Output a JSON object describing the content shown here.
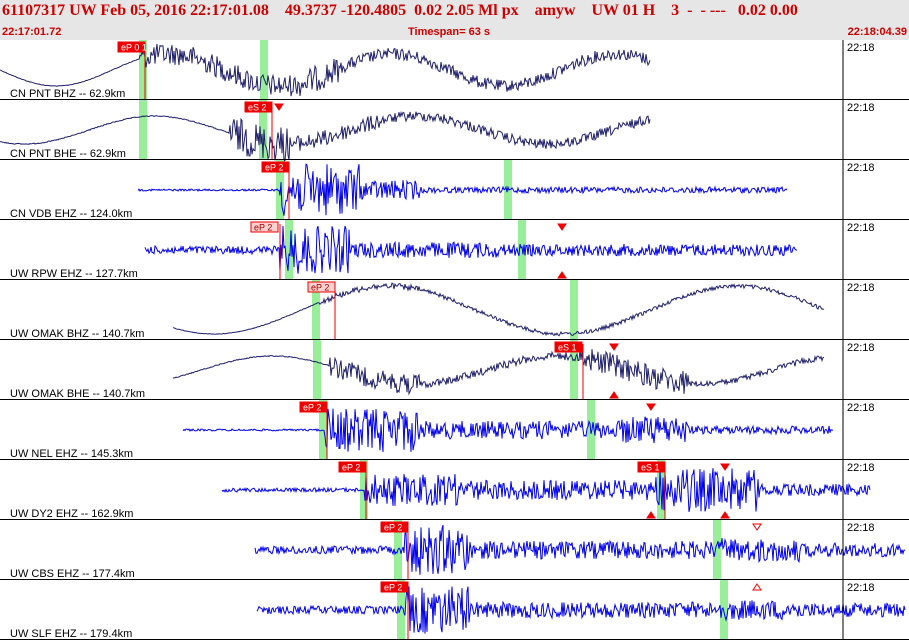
{
  "header": {
    "title": "61107317 UW Feb 05, 2016 22:17:01.08    49.3737 -120.4805  0.02 2.05 Ml px    amyw    UW 01 H    3  -  - ---   0.02 0.00",
    "start_time": "22:17:01.72",
    "timespan": "Timespan=  63 s",
    "end_time": "22:18:04.39"
  },
  "colors": {
    "background": "#ffffff",
    "header_bg": "#e6e6e6",
    "header_text": "#cc0000",
    "trace_blue": "#0000ee",
    "trace_navy": "#1f1f6b",
    "pick_box": "#ee0000",
    "pick_box_light": "#ffd0d0",
    "window_green": "#99ee99"
  },
  "traces": [
    {
      "label": "CN PNT BHZ -- 62.9km",
      "minute": "22:18",
      "color": "navy",
      "start": 0,
      "end": 650,
      "base_freq": 0.028,
      "base_amp": 16,
      "noise": [
        [
          0,
          140,
          0.3
        ],
        [
          140,
          300,
          11
        ],
        [
          300,
          340,
          13
        ],
        [
          340,
          650,
          6
        ]
      ],
      "greens": [
        143,
        264
      ],
      "picks": [
        {
          "x": 118,
          "label": "eP 0 1",
          "style": "solid",
          "line_to": 145
        }
      ]
    },
    {
      "label": "CN PNT BHE -- 62.9km",
      "minute": "22:18",
      "color": "navy",
      "start": 0,
      "end": 650,
      "base_freq": 0.024,
      "base_amp": 14,
      "noise": [
        [
          0,
          230,
          0.5
        ],
        [
          230,
          290,
          18
        ],
        [
          290,
          380,
          8
        ],
        [
          380,
          650,
          5
        ]
      ],
      "greens": [
        143,
        263
      ],
      "picks": [
        {
          "x": 245,
          "label": "eS 2",
          "style": "solid",
          "line_to": 272
        }
      ],
      "markers": [
        {
          "x": 279,
          "dir": "down",
          "pos": "top"
        }
      ]
    },
    {
      "label": "CN VDB EHZ -- 124.0km",
      "minute": "22:18",
      "color": "blue",
      "start": 138,
      "end": 787,
      "base_freq": 0,
      "base_amp": 0,
      "noise": [
        [
          138,
          280,
          1
        ],
        [
          280,
          360,
          26
        ],
        [
          360,
          420,
          10
        ],
        [
          420,
          787,
          3
        ]
      ],
      "greens": [
        280,
        508
      ],
      "picks": [
        {
          "x": 262,
          "label": "eP 2",
          "style": "solid",
          "line_to": 289
        }
      ]
    },
    {
      "label": "UW RPW EHZ -- 127.7km",
      "minute": "22:18",
      "color": "blue",
      "start": 145,
      "end": 797,
      "base_freq": 0,
      "base_amp": 0,
      "noise": [
        [
          145,
          280,
          4
        ],
        [
          280,
          350,
          24
        ],
        [
          350,
          500,
          8
        ],
        [
          500,
          797,
          6
        ]
      ],
      "greens": [
        289,
        522
      ],
      "picks": [
        {
          "x": 251,
          "label": "eP 2",
          "style": "light",
          "line_to": 280
        }
      ],
      "markers": [
        {
          "x": 562,
          "dir": "down",
          "pos": "top"
        },
        {
          "x": 562,
          "dir": "up",
          "pos": "bottom"
        }
      ]
    },
    {
      "label": "UW OMAK BHZ -- 140.7km",
      "minute": "22:18",
      "color": "navy",
      "start": 173,
      "end": 824,
      "base_freq": 0.018,
      "base_amp": 24,
      "noise": [
        [
          173,
          320,
          0.3
        ],
        [
          320,
          420,
          3
        ],
        [
          420,
          824,
          2
        ]
      ],
      "greens": [
        316,
        574
      ],
      "picks": [
        {
          "x": 308,
          "label": "eP 2",
          "style": "light",
          "line_to": 335
        }
      ]
    },
    {
      "label": "UW OMAK BHE -- 140.7km",
      "minute": "22:18",
      "color": "navy",
      "start": 173,
      "end": 824,
      "base_freq": 0.022,
      "base_amp": 14,
      "noise": [
        [
          173,
          330,
          0.5
        ],
        [
          330,
          420,
          10
        ],
        [
          420,
          580,
          4
        ],
        [
          580,
          690,
          12
        ],
        [
          690,
          824,
          3
        ]
      ],
      "greens": [
        317,
        574
      ],
      "picks": [
        {
          "x": 555,
          "label": "eS 1",
          "style": "solid",
          "line_to": 583
        }
      ],
      "markers": [
        {
          "x": 614,
          "dir": "down",
          "pos": "top"
        },
        {
          "x": 614,
          "dir": "up",
          "pos": "bottom"
        }
      ]
    },
    {
      "label": "UW NEL EHZ -- 145.3km",
      "minute": "22:18",
      "color": "blue",
      "start": 183,
      "end": 833,
      "base_freq": 0,
      "base_amp": 0,
      "noise": [
        [
          183,
          325,
          1
        ],
        [
          325,
          420,
          22
        ],
        [
          420,
          620,
          9
        ],
        [
          620,
          690,
          14
        ],
        [
          690,
          833,
          4
        ]
      ],
      "greens": [
        323,
        591
      ],
      "picks": [
        {
          "x": 300,
          "label": "eP 2",
          "style": "solid",
          "line_to": 327
        }
      ],
      "markers": [
        {
          "x": 651,
          "dir": "down",
          "pos": "top"
        }
      ]
    },
    {
      "label": "UW DY2 EHZ -- 162.9km",
      "minute": "22:18",
      "color": "blue",
      "start": 222,
      "end": 870,
      "base_freq": 0,
      "base_amp": 0,
      "noise": [
        [
          222,
          365,
          2
        ],
        [
          365,
          460,
          16
        ],
        [
          460,
          655,
          10
        ],
        [
          655,
          760,
          22
        ],
        [
          760,
          870,
          6
        ]
      ],
      "greens": [
        364,
        661
      ],
      "picks": [
        {
          "x": 339,
          "label": "eP 2",
          "style": "solid",
          "line_to": 366
        },
        {
          "x": 638,
          "label": "eS 1",
          "style": "solid",
          "line_to": 665
        }
      ],
      "markers": [
        {
          "x": 651,
          "dir": "up",
          "pos": "bottom"
        },
        {
          "x": 725,
          "dir": "down",
          "pos": "top"
        },
        {
          "x": 725,
          "dir": "up",
          "pos": "bottom"
        }
      ]
    },
    {
      "label": "UW CBS EHZ -- 177.4km",
      "minute": "22:18",
      "color": "blue",
      "start": 255,
      "end": 905,
      "base_freq": 0,
      "base_amp": 0,
      "noise": [
        [
          255,
          405,
          4
        ],
        [
          405,
          470,
          25
        ],
        [
          470,
          720,
          9
        ],
        [
          720,
          800,
          12
        ],
        [
          800,
          905,
          7
        ]
      ],
      "greens": [
        398,
        717
      ],
      "picks": [
        {
          "x": 381,
          "label": "eP 2",
          "style": "solid",
          "line_to": 408
        }
      ],
      "markers": [
        {
          "x": 757,
          "dir": "down-open",
          "pos": "top"
        }
      ]
    },
    {
      "label": "UW SLF EHZ -- 179.4km",
      "minute": "22:18",
      "color": "blue",
      "start": 257,
      "end": 905,
      "base_freq": 0,
      "base_amp": 0,
      "noise": [
        [
          257,
          405,
          4
        ],
        [
          405,
          470,
          24
        ],
        [
          470,
          720,
          8
        ],
        [
          720,
          800,
          10
        ],
        [
          800,
          905,
          7
        ]
      ],
      "greens": [
        401,
        724
      ],
      "picks": [
        {
          "x": 381,
          "label": "eP 2",
          "style": "solid",
          "line_to": 408
        }
      ],
      "markers": [
        {
          "x": 757,
          "dir": "up-open",
          "pos": "top"
        }
      ]
    }
  ]
}
